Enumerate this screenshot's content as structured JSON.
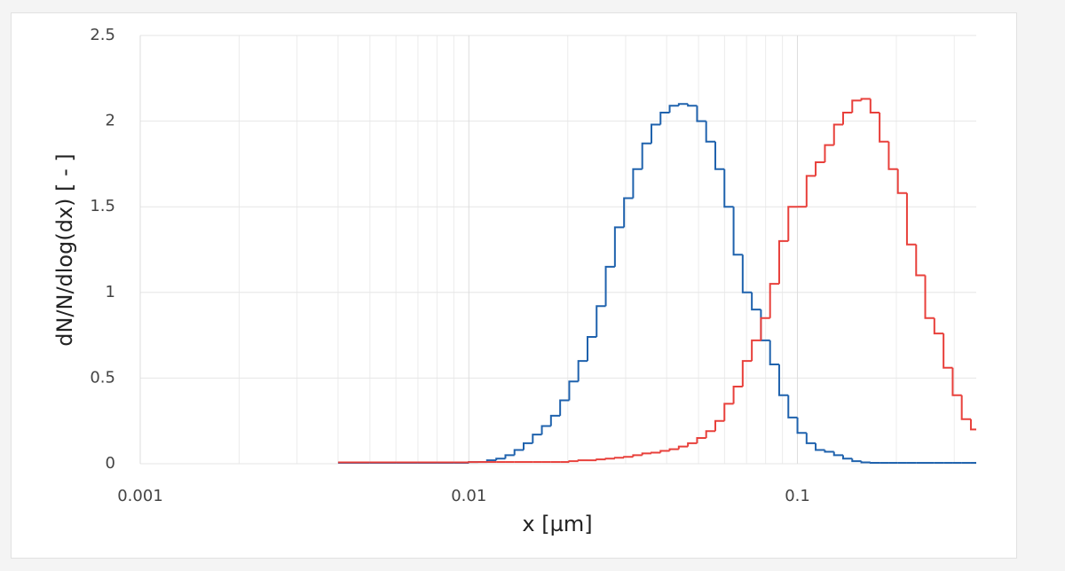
{
  "chart_data": {
    "type": "step",
    "x_label": "x [µm]",
    "y_label": "dN/N/dlog(dx) [ - ]",
    "x_log": true,
    "grid": true,
    "xlim": [
      0.001,
      0.35
    ],
    "xticks": [
      0.001,
      0.01,
      0.1
    ],
    "xminorticks": [
      0.002,
      0.003,
      0.004,
      0.005,
      0.006,
      0.007,
      0.008,
      0.009,
      0.02,
      0.03,
      0.04,
      0.05,
      0.06,
      0.07,
      0.08,
      0.09,
      0.2,
      0.3
    ],
    "ylim": [
      0,
      2.5
    ],
    "yticks": [
      0,
      0.5,
      1,
      1.5,
      2,
      2.5
    ],
    "x": [
      0.004,
      0.005,
      0.006,
      0.007,
      0.008,
      0.009,
      0.01,
      0.01066,
      0.01136,
      0.01212,
      0.01292,
      0.01377,
      0.01468,
      0.01565,
      0.01668,
      0.01778,
      0.01896,
      0.02021,
      0.02154,
      0.02297,
      0.02448,
      0.0261,
      0.02783,
      0.02967,
      0.03162,
      0.03371,
      0.03594,
      0.03831,
      0.04084,
      0.04354,
      0.04642,
      0.04949,
      0.05275,
      0.05624,
      0.05995,
      0.06392,
      0.06813,
      0.07264,
      0.07743,
      0.08254,
      0.08799,
      0.09381,
      0.1,
      0.1066,
      0.1136,
      0.1212,
      0.1292,
      0.1377,
      0.1468,
      0.1565,
      0.1668,
      0.1778,
      0.1896,
      0.2021,
      0.2154,
      0.2297,
      0.2448,
      0.261,
      0.2783,
      0.2967,
      0.3162,
      0.3371
    ],
    "series": [
      {
        "color": "#1f62ad",
        "values": [
          0.005,
          0.005,
          0.005,
          0.005,
          0.005,
          0.005,
          0.01,
          0.01,
          0.02,
          0.03,
          0.05,
          0.08,
          0.12,
          0.17,
          0.22,
          0.28,
          0.37,
          0.48,
          0.6,
          0.74,
          0.92,
          1.15,
          1.38,
          1.55,
          1.72,
          1.87,
          1.98,
          2.05,
          2.09,
          2.1,
          2.09,
          2.0,
          1.88,
          1.72,
          1.5,
          1.22,
          1.0,
          0.9,
          0.72,
          0.58,
          0.4,
          0.27,
          0.18,
          0.12,
          0.08,
          0.07,
          0.05,
          0.03,
          0.015,
          0.008,
          0.005,
          0.005,
          0.005,
          0.005,
          0.005,
          0.005,
          0.005,
          0.005,
          0.005,
          0.005,
          0.005,
          0.005
        ]
      },
      {
        "color": "#e8403b",
        "values": [
          0.008,
          0.008,
          0.008,
          0.008,
          0.008,
          0.008,
          0.01,
          0.01,
          0.01,
          0.01,
          0.01,
          0.01,
          0.01,
          0.01,
          0.01,
          0.01,
          0.01,
          0.015,
          0.02,
          0.02,
          0.025,
          0.03,
          0.035,
          0.04,
          0.05,
          0.06,
          0.065,
          0.075,
          0.085,
          0.1,
          0.12,
          0.15,
          0.19,
          0.25,
          0.35,
          0.45,
          0.6,
          0.72,
          0.85,
          1.05,
          1.3,
          1.5,
          1.5,
          1.68,
          1.76,
          1.86,
          1.98,
          2.05,
          2.12,
          2.13,
          2.05,
          1.88,
          1.72,
          1.58,
          1.28,
          1.1,
          0.85,
          0.76,
          0.56,
          0.4,
          0.26,
          0.2
        ]
      }
    ]
  }
}
